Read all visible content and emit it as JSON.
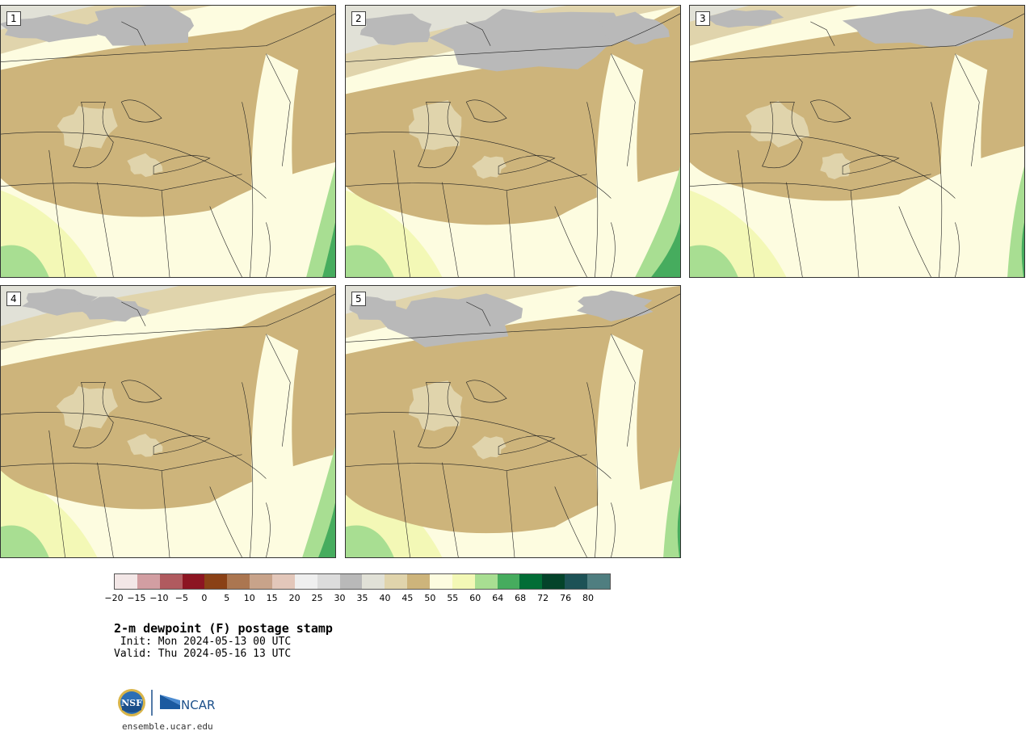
{
  "panels": [
    {
      "id": "1"
    },
    {
      "id": "2"
    },
    {
      "id": "3"
    },
    {
      "id": "4"
    },
    {
      "id": "5"
    }
  ],
  "legend": {
    "colors": [
      "#f3e7e7",
      "#d29ea2",
      "#b05a5f",
      "#8c1522",
      "#8a4116",
      "#ab7650",
      "#c8a38a",
      "#e3c7ba",
      "#efefef",
      "#dcdcdc",
      "#b9b9b9",
      "#e1e1d7",
      "#e0d4ac",
      "#cdb47b",
      "#fdfce0",
      "#f3f8b6",
      "#a8de92",
      "#46ac5e",
      "#026d36",
      "#04432a",
      "#1d5256",
      "#4f7e80"
    ],
    "tick_labels": [
      "−20",
      "−15",
      "−10",
      "−5",
      "0",
      "5",
      "10",
      "15",
      "20",
      "25",
      "30",
      "35",
      "40",
      "45",
      "50",
      "55",
      "60",
      "64",
      "68",
      "72",
      "76",
      "80"
    ]
  },
  "title": "2-m dewpoint (F) postage stamp",
  "init": " Init: Mon 2024-05-13 00 UTC",
  "valid": "Valid: Thu 2024-05-16 13 UTC",
  "logo": {
    "nsf": "NSF",
    "ncar": "NCAR"
  },
  "url": "ensemble.ucar.edu"
}
